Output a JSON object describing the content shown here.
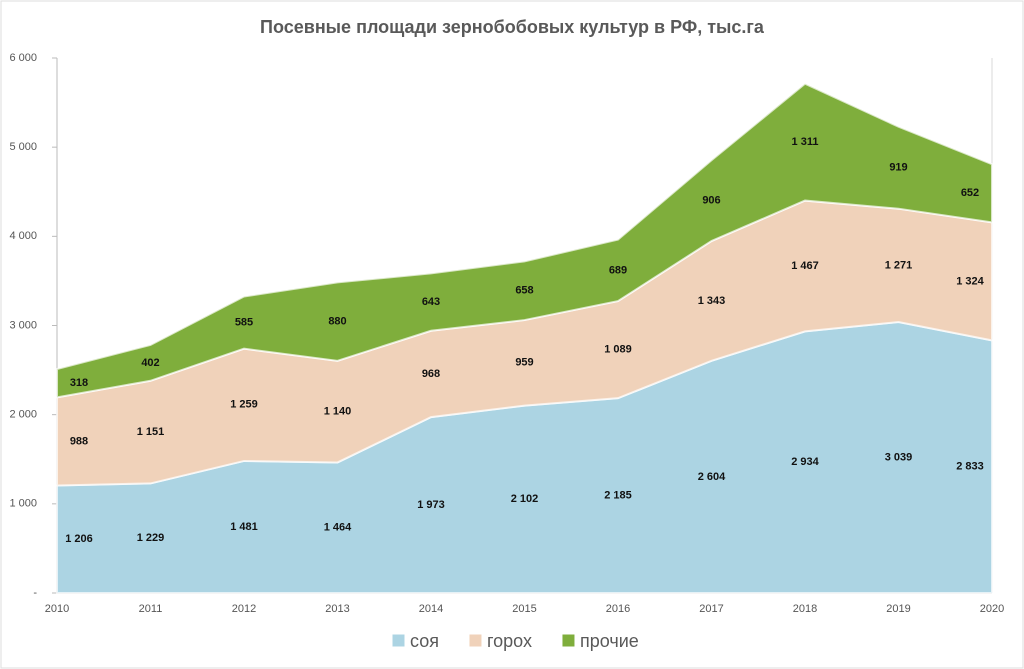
{
  "chart_data": {
    "type": "stacked_area",
    "title": "Посевные площади зернобобовых культур в РФ, тыс.га",
    "categories": [
      "2010",
      "2011",
      "2012",
      "2013",
      "2014",
      "2015",
      "2016",
      "2017",
      "2018",
      "2019",
      "2020"
    ],
    "series": [
      {
        "name": "соя",
        "color": "#acd4e3",
        "values": [
          1206,
          1229,
          1481,
          1464,
          1973,
          2102,
          2185,
          2604,
          2934,
          3039,
          2833
        ],
        "value_labels": [
          "1 206",
          "1 229",
          "1 481",
          "1 464",
          "1 973",
          "2 102",
          "2 185",
          "2 604",
          "2 934",
          "3 039",
          "2 833"
        ]
      },
      {
        "name": "горох",
        "color": "#f0d2ba",
        "values": [
          988,
          1151,
          1259,
          1140,
          968,
          959,
          1089,
          1343,
          1467,
          1271,
          1324
        ],
        "value_labels": [
          "988",
          "1 151",
          "1 259",
          "1 140",
          "968",
          "959",
          "1 089",
          "1 343",
          "1 467",
          "1 271",
          "1 324"
        ]
      },
      {
        "name": "прочие",
        "color": "#7fae3c",
        "values": [
          318,
          402,
          585,
          880,
          643,
          658,
          689,
          906,
          1311,
          919,
          652
        ],
        "value_labels": [
          "318",
          "402",
          "585",
          "880",
          "643",
          "658",
          "689",
          "906",
          "1 311",
          "919",
          "652"
        ]
      }
    ],
    "ylim": [
      0,
      6000
    ],
    "yticks": [
      {
        "value": 0,
        "label": "-"
      },
      {
        "value": 1000,
        "label": "1 000"
      },
      {
        "value": 2000,
        "label": "2 000"
      },
      {
        "value": 3000,
        "label": "3 000"
      },
      {
        "value": 4000,
        "label": "4 000"
      },
      {
        "value": 5000,
        "label": "5 000"
      },
      {
        "value": 6000,
        "label": "6 000"
      }
    ],
    "legend": "bottom"
  }
}
